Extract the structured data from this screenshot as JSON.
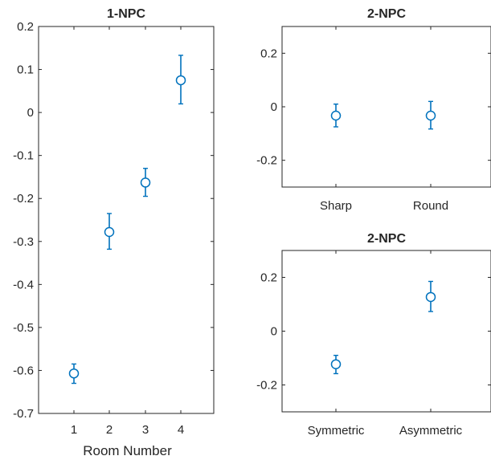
{
  "chart_data": [
    {
      "type": "scatter",
      "title": "1-NPC",
      "xlabel": "Room Number",
      "ylabel": "",
      "categories": [
        "1",
        "2",
        "3",
        "4"
      ],
      "ylim": [
        -0.7,
        0.2
      ],
      "yticks": [
        "0.2",
        "0.1",
        "0",
        "-0.1",
        "-0.2",
        "-0.3",
        "-0.4",
        "-0.5",
        "-0.6",
        "-0.7"
      ],
      "series": [
        {
          "values": [
            -0.607,
            -0.278,
            -0.163,
            0.075
          ],
          "err_low": [
            -0.63,
            -0.318,
            -0.195,
            0.02
          ],
          "err_high": [
            -0.585,
            -0.235,
            -0.13,
            0.133
          ]
        }
      ],
      "grid": false,
      "color": "#0072BD"
    },
    {
      "type": "scatter",
      "title": "2-NPC",
      "xlabel": "",
      "ylabel": "",
      "categories": [
        "Sharp",
        "Round"
      ],
      "ylim": [
        -0.3,
        0.3
      ],
      "yticks": [
        "0.2",
        "0",
        "-0.2"
      ],
      "series": [
        {
          "values": [
            -0.033,
            -0.033
          ],
          "err_low": [
            -0.075,
            -0.083
          ],
          "err_high": [
            0.01,
            0.02
          ]
        }
      ],
      "grid": false,
      "color": "#0072BD"
    },
    {
      "type": "scatter",
      "title": "2-NPC",
      "xlabel": "",
      "ylabel": "",
      "categories": [
        "Symmetric",
        "Asymmetric"
      ],
      "ylim": [
        -0.3,
        0.3
      ],
      "yticks": [
        "0.2",
        "0",
        "-0.2"
      ],
      "series": [
        {
          "values": [
            -0.123,
            0.127
          ],
          "err_low": [
            -0.158,
            0.073
          ],
          "err_high": [
            -0.09,
            0.185
          ]
        }
      ],
      "grid": false,
      "color": "#0072BD"
    }
  ]
}
